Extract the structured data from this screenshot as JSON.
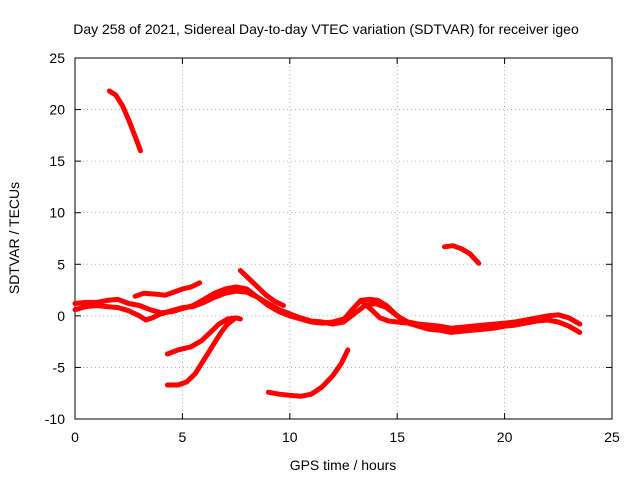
{
  "chart_data": {
    "type": "scatter",
    "title": "Day 258 of 2021, Sidereal Day-to-day VTEC variation (SDTVAR) for receiver igeo",
    "xlabel": "GPS time / hours",
    "ylabel": "SDTVAR / TECUs",
    "xlim": [
      0,
      25
    ],
    "ylim": [
      -10,
      25
    ],
    "xticks": [
      0,
      5,
      10,
      15,
      20,
      25
    ],
    "yticks": [
      -10,
      -5,
      0,
      5,
      10,
      15,
      20,
      25
    ],
    "xtick_labels": [
      "0",
      "5",
      "10",
      "15",
      "20",
      "25"
    ],
    "ytick_labels": [
      "-10",
      "-5",
      "0",
      "5",
      "10",
      "15",
      "20",
      "25"
    ],
    "grid": true,
    "color": "#ff0000",
    "series": [
      {
        "name": "arc-early-high",
        "points": [
          [
            1.6,
            21.8
          ],
          [
            1.9,
            21.4
          ],
          [
            2.2,
            20.4
          ],
          [
            2.5,
            19.0
          ],
          [
            2.8,
            17.4
          ],
          [
            3.05,
            16.0
          ]
        ]
      },
      {
        "name": "arc-baseline-a",
        "points": [
          [
            0.0,
            1.2
          ],
          [
            0.5,
            1.3
          ],
          [
            1.0,
            1.3
          ],
          [
            1.5,
            1.5
          ],
          [
            2.0,
            1.6
          ],
          [
            2.5,
            1.2
          ],
          [
            3.0,
            1.0
          ],
          [
            3.5,
            0.6
          ],
          [
            4.0,
            0.3
          ],
          [
            4.5,
            0.4
          ],
          [
            5.0,
            0.7
          ],
          [
            5.5,
            1.0
          ],
          [
            6.0,
            1.6
          ],
          [
            6.5,
            2.2
          ],
          [
            7.0,
            2.6
          ],
          [
            7.5,
            2.8
          ],
          [
            8.0,
            2.6
          ],
          [
            8.5,
            1.8
          ],
          [
            9.0,
            1.0
          ],
          [
            9.5,
            0.4
          ],
          [
            10.0,
            0.0
          ],
          [
            10.5,
            -0.3
          ],
          [
            11.0,
            -0.6
          ],
          [
            11.5,
            -0.7
          ],
          [
            12.0,
            -0.6
          ],
          [
            12.5,
            -0.3
          ]
        ]
      },
      {
        "name": "arc-baseline-b",
        "points": [
          [
            0.0,
            0.6
          ],
          [
            0.5,
            0.9
          ],
          [
            1.0,
            1.0
          ],
          [
            1.5,
            0.9
          ],
          [
            2.0,
            0.8
          ],
          [
            2.5,
            0.5
          ],
          [
            3.0,
            0.0
          ],
          [
            3.3,
            -0.4
          ],
          [
            3.6,
            -0.2
          ],
          [
            4.0,
            0.2
          ],
          [
            4.5,
            0.5
          ],
          [
            5.0,
            0.8
          ],
          [
            5.5,
            0.9
          ],
          [
            6.0,
            1.3
          ],
          [
            6.5,
            1.8
          ],
          [
            7.0,
            2.2
          ],
          [
            7.5,
            2.4
          ],
          [
            8.0,
            2.3
          ],
          [
            8.5,
            1.8
          ],
          [
            9.0,
            1.2
          ],
          [
            9.5,
            0.6
          ],
          [
            10.0,
            0.2
          ],
          [
            10.5,
            -0.2
          ],
          [
            11.0,
            -0.5
          ],
          [
            11.5,
            -0.6
          ],
          [
            12.0,
            -0.8
          ],
          [
            12.5,
            -0.6
          ],
          [
            13.0,
            0.2
          ],
          [
            13.5,
            1.0
          ],
          [
            14.0,
            1.2
          ],
          [
            14.5,
            0.8
          ],
          [
            15.0,
            0.0
          ],
          [
            15.5,
            -0.6
          ],
          [
            16.0,
            -0.8
          ],
          [
            16.5,
            -0.9
          ],
          [
            17.0,
            -1.0
          ],
          [
            17.5,
            -1.2
          ],
          [
            18.0,
            -1.1
          ],
          [
            18.5,
            -1.0
          ],
          [
            19.0,
            -0.9
          ],
          [
            19.5,
            -0.8
          ],
          [
            20.0,
            -0.7
          ],
          [
            20.5,
            -0.6
          ],
          [
            21.0,
            -0.4
          ],
          [
            21.5,
            -0.2
          ],
          [
            22.0,
            0.0
          ],
          [
            22.5,
            0.1
          ],
          [
            23.0,
            -0.2
          ],
          [
            23.5,
            -0.8
          ]
        ]
      },
      {
        "name": "arc-mid-upper",
        "points": [
          [
            2.8,
            1.9
          ],
          [
            3.2,
            2.2
          ],
          [
            3.8,
            2.1
          ],
          [
            4.2,
            2.0
          ],
          [
            4.6,
            2.3
          ],
          [
            5.0,
            2.6
          ],
          [
            5.4,
            2.8
          ],
          [
            5.8,
            3.2
          ]
        ]
      },
      {
        "name": "arc-spike",
        "points": [
          [
            7.7,
            4.4
          ],
          [
            8.1,
            3.6
          ],
          [
            8.5,
            2.8
          ],
          [
            8.9,
            2.0
          ],
          [
            9.3,
            1.4
          ],
          [
            9.7,
            1.0
          ]
        ]
      },
      {
        "name": "arc-afternoon",
        "points": [
          [
            12.5,
            -0.4
          ],
          [
            12.9,
            0.6
          ],
          [
            13.3,
            1.5
          ],
          [
            13.7,
            1.6
          ],
          [
            14.1,
            1.5
          ],
          [
            14.5,
            1.0
          ],
          [
            14.9,
            0.2
          ],
          [
            15.2,
            -0.3
          ]
        ]
      },
      {
        "name": "arc-late-low",
        "points": [
          [
            13.4,
            1.3
          ],
          [
            13.8,
            0.6
          ],
          [
            14.2,
            -0.2
          ],
          [
            14.6,
            -0.5
          ],
          [
            15.0,
            -0.6
          ],
          [
            15.5,
            -0.7
          ],
          [
            16.0,
            -1.0
          ],
          [
            16.5,
            -1.3
          ],
          [
            17.0,
            -1.4
          ],
          [
            17.5,
            -1.6
          ],
          [
            18.0,
            -1.5
          ],
          [
            18.5,
            -1.4
          ],
          [
            19.0,
            -1.3
          ],
          [
            19.5,
            -1.2
          ],
          [
            20.0,
            -1.0
          ],
          [
            20.5,
            -0.9
          ],
          [
            21.0,
            -0.7
          ],
          [
            21.5,
            -0.5
          ],
          [
            22.0,
            -0.4
          ],
          [
            22.5,
            -0.6
          ],
          [
            23.0,
            -1.0
          ],
          [
            23.5,
            -1.6
          ]
        ]
      },
      {
        "name": "arc-rise-a",
        "points": [
          [
            4.3,
            -3.7
          ],
          [
            4.8,
            -3.3
          ],
          [
            5.4,
            -3.0
          ],
          [
            5.9,
            -2.4
          ],
          [
            6.3,
            -1.6
          ],
          [
            6.7,
            -0.8
          ],
          [
            7.1,
            -0.3
          ],
          [
            7.5,
            -0.2
          ],
          [
            7.7,
            -0.3
          ]
        ]
      },
      {
        "name": "arc-rise-b",
        "points": [
          [
            4.3,
            -6.7
          ],
          [
            4.8,
            -6.7
          ],
          [
            5.2,
            -6.4
          ],
          [
            5.6,
            -5.6
          ],
          [
            5.9,
            -4.6
          ],
          [
            6.2,
            -3.6
          ],
          [
            6.5,
            -2.6
          ],
          [
            6.8,
            -1.6
          ],
          [
            7.1,
            -0.8
          ],
          [
            7.4,
            -0.3
          ]
        ]
      },
      {
        "name": "arc-bottom",
        "points": [
          [
            9.0,
            -7.4
          ],
          [
            9.5,
            -7.6
          ],
          [
            10.0,
            -7.7
          ],
          [
            10.5,
            -7.8
          ],
          [
            11.0,
            -7.6
          ],
          [
            11.5,
            -6.9
          ],
          [
            12.0,
            -5.8
          ],
          [
            12.4,
            -4.6
          ],
          [
            12.7,
            -3.3
          ]
        ]
      },
      {
        "name": "arc-late-high",
        "points": [
          [
            17.2,
            6.7
          ],
          [
            17.6,
            6.8
          ],
          [
            18.0,
            6.5
          ],
          [
            18.4,
            6.0
          ],
          [
            18.8,
            5.1
          ]
        ]
      }
    ]
  }
}
